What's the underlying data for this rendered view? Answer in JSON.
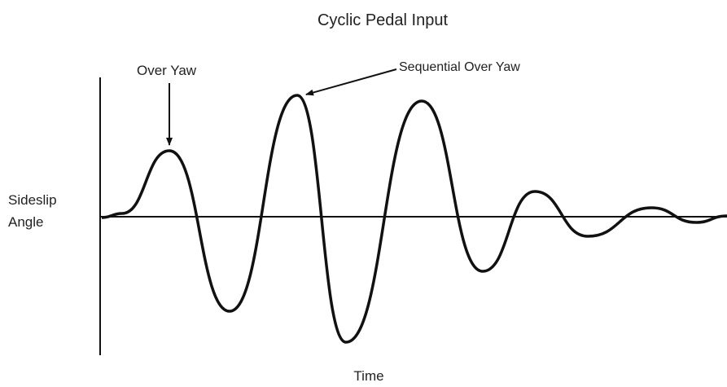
{
  "title": "Cyclic Pedal Input",
  "y_axis_label": "Sideslip Angle",
  "x_axis_label": "Time",
  "annotations": [
    "Over Yaw",
    "Sequential Over Yaw"
  ]
}
